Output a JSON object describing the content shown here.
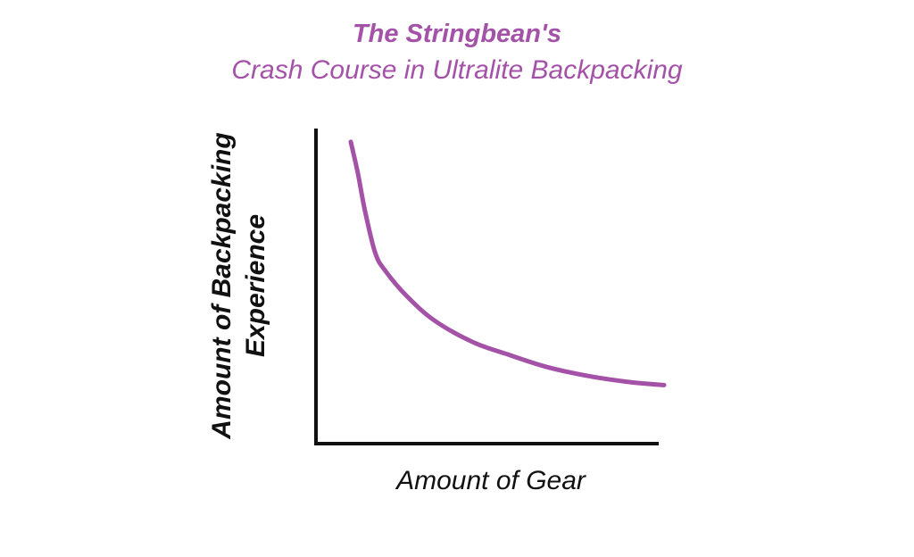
{
  "chart_data": {
    "type": "line",
    "title": "The Stringbean's",
    "subtitle": "Crash Course in Ultralite Backpacking",
    "xlabel": "Amount of Gear",
    "ylabel_line1": "Amount of Backpacking",
    "ylabel_line2": "Experience",
    "xlim": [
      0,
      100
    ],
    "ylim": [
      0,
      100
    ],
    "grid": false,
    "axes_color": "#111111",
    "series": [
      {
        "color": "#a452a8",
        "x": [
          10,
          12,
          14,
          17,
          20,
          26,
          34,
          45,
          55,
          66,
          78,
          90,
          100
        ],
        "y": [
          98,
          88,
          76,
          62,
          56,
          48,
          40,
          33,
          29,
          25,
          22,
          20,
          19
        ]
      }
    ]
  }
}
